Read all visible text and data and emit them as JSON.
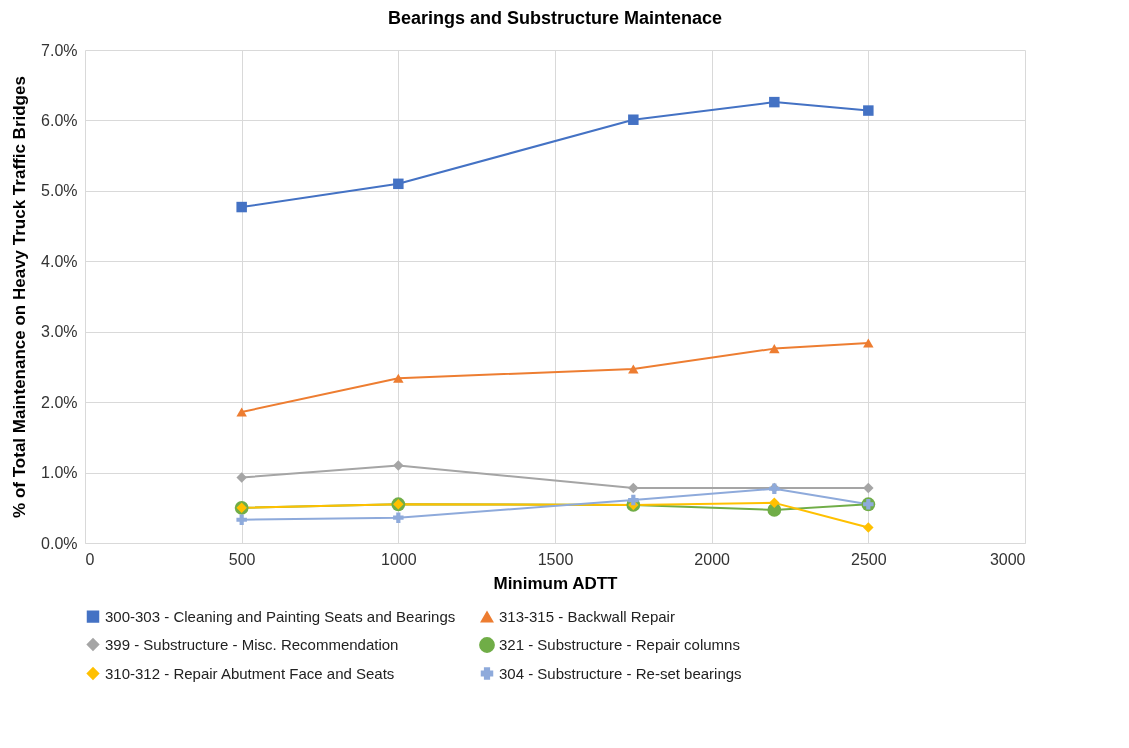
{
  "chart_data": {
    "type": "line",
    "title": "Bearings and Substructure Maintenace",
    "xlabel": "Minimum ADTT",
    "ylabel": "% of Total Maintenance on Heavy Truck Traffic Bridges",
    "x": [
      500,
      1000,
      1750,
      2200,
      2500
    ],
    "series": [
      {
        "name": "300-303 - Cleaning and Painting Seats and Bearings",
        "color": "#4472c4",
        "marker": "square",
        "values": [
          4.77,
          5.1,
          6.01,
          6.26,
          6.14
        ]
      },
      {
        "name": "313-315 - Backwall Repair",
        "color": "#ed7d31",
        "marker": "triangle",
        "values": [
          1.86,
          2.34,
          2.47,
          2.76,
          2.84
        ]
      },
      {
        "name": "399 - Substructure - Misc. Recommendation",
        "color": "#a5a5a5",
        "marker": "diamond",
        "values": [
          0.93,
          1.1,
          0.78,
          0.78,
          0.78
        ]
      },
      {
        "name": "321 - Substructure - Repair columns",
        "color": "#70ad47",
        "marker": "circle",
        "values": [
          0.5,
          0.55,
          0.54,
          0.47,
          0.55
        ]
      },
      {
        "name": "310-312 - Repair Abutment Face and Seats",
        "color": "#ffc000",
        "marker": "diamond",
        "values": [
          0.5,
          0.55,
          0.54,
          0.57,
          0.22
        ]
      },
      {
        "name": "304 - Substructure - Re-set bearings",
        "color": "#8eaadb",
        "marker": "cross",
        "values": [
          0.33,
          0.36,
          0.61,
          0.77,
          0.55
        ]
      }
    ],
    "xlim": [
      0,
      3000
    ],
    "xticks": [
      0,
      500,
      1000,
      1500,
      2000,
      2500,
      3000
    ],
    "ylim": [
      0,
      7
    ],
    "yticks": [
      {
        "value": 0,
        "label": "0.0%"
      },
      {
        "value": 1,
        "label": "1.0%"
      },
      {
        "value": 2,
        "label": "2.0%"
      },
      {
        "value": 3,
        "label": "3.0%"
      },
      {
        "value": 4,
        "label": "4.0%"
      },
      {
        "value": 5,
        "label": "5.0%"
      },
      {
        "value": 6,
        "label": "6.0%"
      },
      {
        "value": 7,
        "label": "7.0%"
      }
    ],
    "grid": true,
    "legend": "bottom"
  }
}
